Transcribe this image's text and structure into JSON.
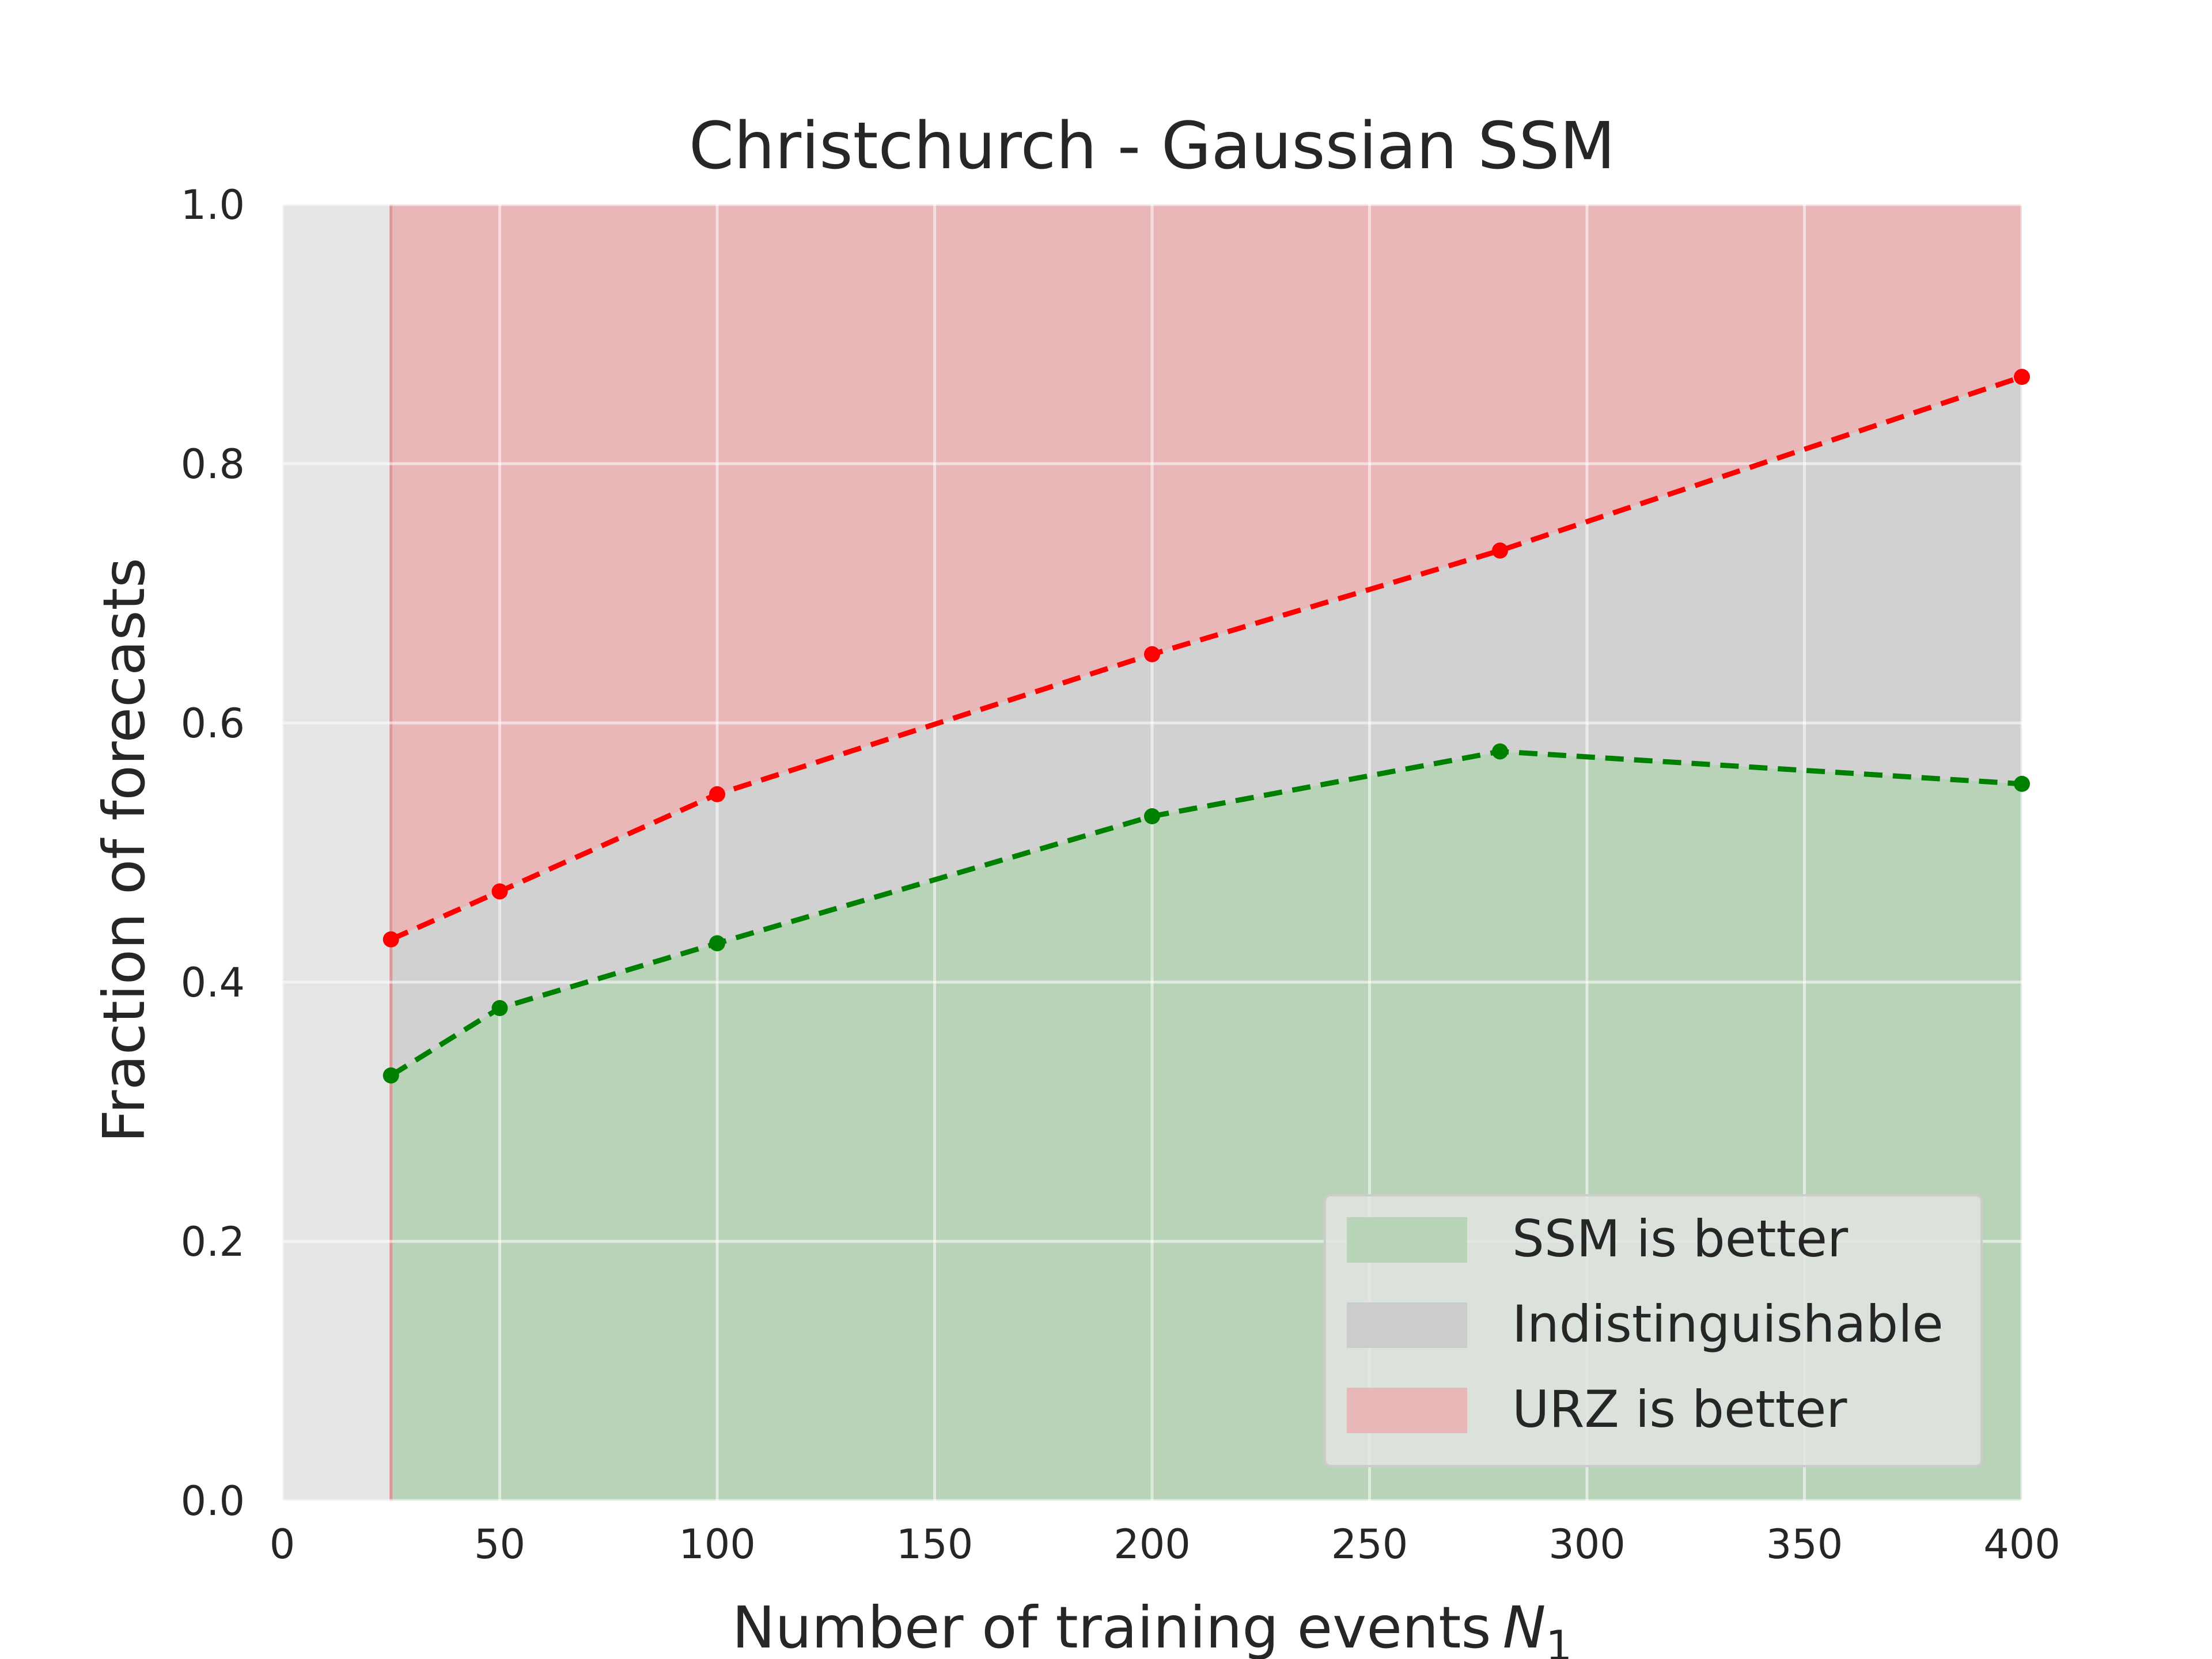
{
  "chart_data": {
    "type": "area",
    "title": "Christchurch - Gaussian SSM",
    "xlabel": "Number of training events",
    "xlabel_symbol": "N",
    "xlabel_subscript": "1",
    "ylabel": "Fraction of forecasts",
    "xlim": [
      0,
      400
    ],
    "ylim": [
      0,
      1
    ],
    "xticks": [
      "0",
      "50",
      "100",
      "150",
      "200",
      "250",
      "300",
      "350",
      "400"
    ],
    "yticks": [
      "0.0",
      "0.2",
      "0.4",
      "0.6",
      "0.8",
      "1.0"
    ],
    "grid": true,
    "legend_position": "lower-right",
    "x": [
      25,
      50,
      100,
      200,
      280,
      400
    ],
    "series": [
      {
        "name": "SSM is better",
        "kind": "lower boundary line",
        "color": "#008000",
        "values": [
          0.328,
          0.38,
          0.43,
          0.528,
          0.578,
          0.553
        ]
      },
      {
        "name": "URZ is better",
        "kind": "upper boundary line",
        "color": "#ff0000",
        "values": [
          0.433,
          0.47,
          0.545,
          0.653,
          0.733,
          0.867
        ]
      }
    ],
    "legend": [
      {
        "label": "SSM is better",
        "color": "#b8d4b8"
      },
      {
        "label": "Indistinguishable",
        "color": "#cccccc"
      },
      {
        "label": "URZ is better",
        "color": "#e8b8b8"
      }
    ],
    "region_colors": {
      "ssm_better": "#b8d3b8",
      "indistinguishable": "#d1d1d1",
      "urz_better": "#e9b7b8",
      "background": "#e5e5e5"
    }
  }
}
